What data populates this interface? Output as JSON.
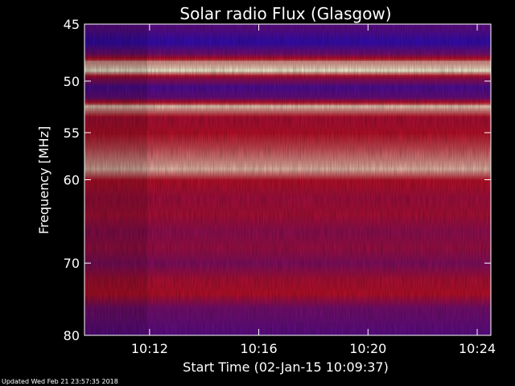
{
  "chart_data": {
    "type": "heatmap",
    "title": "Solar radio Flux (Glasgow)",
    "xlabel": "Start Time (02-Jan-15 10:09:37)",
    "ylabel": "Frequency [MHz]",
    "footer": "Updated Wed Feb 21 23:57:35 2018",
    "x_range": [
      "10:09:37",
      "10:24:30"
    ],
    "x_ticks": [
      "10:12",
      "10:16",
      "10:20",
      "10:24"
    ],
    "y_range_mhz": [
      45,
      80
    ],
    "y_scale": "log",
    "y_ticks": [
      45,
      50,
      55,
      60,
      70,
      80
    ],
    "colormap": "blue-red-white",
    "colors": {
      "background": "#000000",
      "frame": "#ffffff",
      "low": "#1a0bd6",
      "mid": "#c0102a",
      "high": "#fff6d8"
    },
    "bands": [
      {
        "mhz": 45.3,
        "intensity": 0.25
      },
      {
        "mhz": 46.5,
        "intensity": 0.1
      },
      {
        "mhz": 47.5,
        "intensity": 0.35
      },
      {
        "mhz": 48.3,
        "intensity": 0.85
      },
      {
        "mhz": 49.0,
        "intensity": 1.0
      },
      {
        "mhz": 49.6,
        "intensity": 0.5
      },
      {
        "mhz": 50.5,
        "intensity": 0.2
      },
      {
        "mhz": 51.5,
        "intensity": 0.3
      },
      {
        "mhz": 52.4,
        "intensity": 0.92
      },
      {
        "mhz": 53.5,
        "intensity": 0.55
      },
      {
        "mhz": 55.0,
        "intensity": 0.6
      },
      {
        "mhz": 56.5,
        "intensity": 0.7
      },
      {
        "mhz": 58.8,
        "intensity": 0.9
      },
      {
        "mhz": 60.0,
        "intensity": 0.6
      },
      {
        "mhz": 62.0,
        "intensity": 0.52
      },
      {
        "mhz": 64.0,
        "intensity": 0.55
      },
      {
        "mhz": 66.0,
        "intensity": 0.45
      },
      {
        "mhz": 68.0,
        "intensity": 0.5
      },
      {
        "mhz": 70.0,
        "intensity": 0.4
      },
      {
        "mhz": 72.0,
        "intensity": 0.55
      },
      {
        "mhz": 74.0,
        "intensity": 0.6
      },
      {
        "mhz": 76.0,
        "intensity": 0.35
      },
      {
        "mhz": 78.0,
        "intensity": 0.3
      },
      {
        "mhz": 80.0,
        "intensity": 0.25
      }
    ]
  }
}
